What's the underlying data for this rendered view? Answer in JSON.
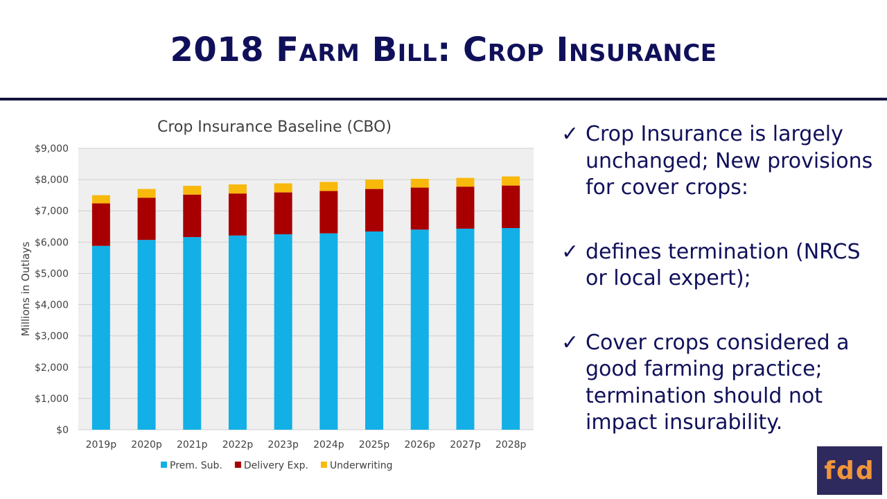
{
  "slide": {
    "title": "2018 Farm Bill:  Crop Insurance"
  },
  "bullets": [
    {
      "icon": "checkmark-icon",
      "mark": "✓",
      "text": "Crop Insurance is largely unchanged; New provisions for cover crops:"
    },
    {
      "icon": "checkmark-icon",
      "mark": "✓",
      "text": "defines termination (NRCS or local expert);"
    },
    {
      "icon": "checkmark-icon",
      "mark": "✓",
      "text": "Cover crops considered a good farming practice; termination should not impact insurability."
    }
  ],
  "logo": {
    "text": "fdd",
    "bg": "#2e2a5e",
    "fg": "#f0963a"
  },
  "chart_data": {
    "type": "bar",
    "stacked": true,
    "title": "Crop Insurance Baseline (CBO)",
    "xlabel": "",
    "ylabel": "Millions in Outlays",
    "ylim": [
      0,
      9000
    ],
    "yticks": [
      0,
      1000,
      2000,
      3000,
      4000,
      5000,
      6000,
      7000,
      8000,
      9000
    ],
    "ytick_labels": [
      "$0",
      "$1,000",
      "$2,000",
      "$3,000",
      "$4,000",
      "$5,000",
      "$6,000",
      "$7,000",
      "$8,000",
      "$9,000"
    ],
    "grid": true,
    "legend": "bottom",
    "categories": [
      "2019p",
      "2020p",
      "2021p",
      "2022p",
      "2023p",
      "2024p",
      "2025p",
      "2026p",
      "2027p",
      "2028p"
    ],
    "series": [
      {
        "name": "Prem. Sub.",
        "color": "#12b0e6",
        "values": [
          5880,
          6070,
          6160,
          6210,
          6250,
          6280,
          6340,
          6400,
          6430,
          6450
        ]
      },
      {
        "name": "Delivery Exp.",
        "color": "#a80000",
        "values": [
          1360,
          1350,
          1360,
          1345,
          1340,
          1355,
          1360,
          1345,
          1345,
          1360
        ]
      },
      {
        "name": "Underwriting",
        "color": "#f8b90c",
        "values": [
          260,
          280,
          280,
          290,
          290,
          290,
          300,
          280,
          280,
          290
        ]
      }
    ]
  }
}
